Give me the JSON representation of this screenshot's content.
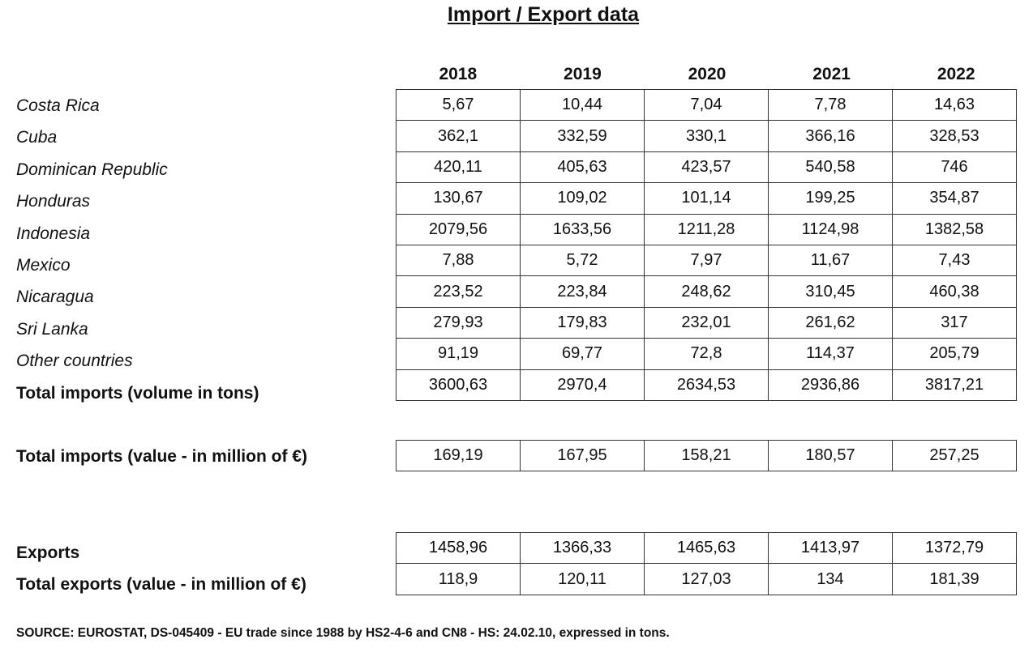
{
  "title": "Import / Export data",
  "years": [
    "2018",
    "2019",
    "2020",
    "2021",
    "2022"
  ],
  "imports": [
    {
      "label": "Costa Rica",
      "values": [
        "5,67",
        "10,44",
        "7,04",
        "7,78",
        "14,63"
      ]
    },
    {
      "label": "Cuba",
      "values": [
        "362,1",
        "332,59",
        "330,1",
        "366,16",
        "328,53"
      ]
    },
    {
      "label": "Dominican Republic",
      "values": [
        "420,11",
        "405,63",
        "423,57",
        "540,58",
        "746"
      ]
    },
    {
      "label": "Honduras",
      "values": [
        "130,67",
        "109,02",
        "101,14",
        "199,25",
        "354,87"
      ]
    },
    {
      "label": "Indonesia",
      "values": [
        "2079,56",
        "1633,56",
        "1211,28",
        "1124,98",
        "1382,58"
      ]
    },
    {
      "label": "Mexico",
      "values": [
        "7,88",
        "5,72",
        "7,97",
        "11,67",
        "7,43"
      ]
    },
    {
      "label": "Nicaragua",
      "values": [
        "223,52",
        "223,84",
        "248,62",
        "310,45",
        "460,38"
      ]
    },
    {
      "label": "Sri Lanka",
      "values": [
        "279,93",
        "179,83",
        "232,01",
        "261,62",
        "317"
      ]
    },
    {
      "label": "Other countries",
      "values": [
        "91,19",
        "69,77",
        "72,8",
        "114,37",
        "205,79"
      ]
    },
    {
      "label": "Total imports (volume in tons)",
      "values": [
        "3600,63",
        "2970,4",
        "2634,53",
        "2936,86",
        "3817,21"
      ]
    }
  ],
  "imports_value": {
    "label": "Total imports (value - in million of €)",
    "values": [
      "169,19",
      "167,95",
      "158,21",
      "180,57",
      "257,25"
    ]
  },
  "exports": [
    {
      "label": "Exports",
      "values": [
        "1458,96",
        "1366,33",
        "1465,63",
        "1413,97",
        "1372,79"
      ]
    },
    {
      "label": "Total exports (value - in million of €)",
      "values": [
        "118,9",
        "120,11",
        "127,03",
        "134",
        "181,39"
      ]
    }
  ],
  "source": "SOURCE: EUROSTAT, DS-045409 - EU trade since 1988 by HS2-4-6 and CN8 - HS: 24.02.10, expressed in tons."
}
